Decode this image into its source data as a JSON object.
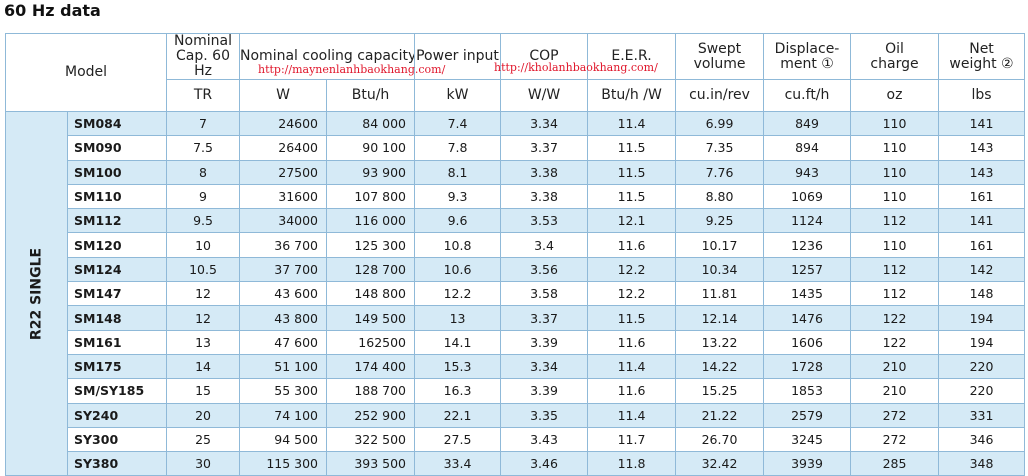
{
  "title": "60 Hz data",
  "watermarks": [
    "http://maynenlanhbaokhang.com/",
    "http://kholanhbaokhang.com/"
  ],
  "group_label": "R22 SINGLE",
  "headers": {
    "model": "Model",
    "cols": [
      {
        "top": "Nominal\nCap. 60 Hz",
        "unit": "TR"
      },
      {
        "top": "Nominal cooling capacity",
        "unit": "W"
      },
      {
        "top": "",
        "unit": "Btu/h"
      },
      {
        "top": "Power input",
        "unit": "kW"
      },
      {
        "top": "COP",
        "unit": "W/W"
      },
      {
        "top": "E.E.R.",
        "unit": "Btu/h /W"
      },
      {
        "top": "Swept\nvolume",
        "unit": "cu.in/rev"
      },
      {
        "top": "Displace-\nment ①",
        "unit": "cu.ft/h"
      },
      {
        "top": "Oil\ncharge",
        "unit": "oz"
      },
      {
        "top": "Net\nweight ②",
        "unit": "lbs"
      }
    ]
  },
  "rows": [
    {
      "model": "SM084",
      "tr": "7",
      "w": "24600",
      "btu": "84 000",
      "kw": "7.4",
      "cop": "3.34",
      "eer": "11.4",
      "swept": "6.99",
      "disp": "849",
      "oil": "110",
      "weight": "141"
    },
    {
      "model": "SM090",
      "tr": "7.5",
      "w": "26400",
      "btu": "90 100",
      "kw": "7.8",
      "cop": "3.37",
      "eer": "11.5",
      "swept": "7.35",
      "disp": "894",
      "oil": "110",
      "weight": "143"
    },
    {
      "model": "SM100",
      "tr": "8",
      "w": "27500",
      "btu": "93 900",
      "kw": "8.1",
      "cop": "3.38",
      "eer": "11.5",
      "swept": "7.76",
      "disp": "943",
      "oil": "110",
      "weight": "143"
    },
    {
      "model": "SM110",
      "tr": "9",
      "w": "31600",
      "btu": "107 800",
      "kw": "9.3",
      "cop": "3.38",
      "eer": "11.5",
      "swept": "8.80",
      "disp": "1069",
      "oil": "110",
      "weight": "161"
    },
    {
      "model": "SM112",
      "tr": "9.5",
      "w": "34000",
      "btu": "116 000",
      "kw": "9.6",
      "cop": "3.53",
      "eer": "12.1",
      "swept": "9.25",
      "disp": "1124",
      "oil": "112",
      "weight": "141"
    },
    {
      "model": "SM120",
      "tr": "10",
      "w": "36 700",
      "btu": "125 300",
      "kw": "10.8",
      "cop": "3.4",
      "eer": "11.6",
      "swept": "10.17",
      "disp": "1236",
      "oil": "110",
      "weight": "161"
    },
    {
      "model": "SM124",
      "tr": "10.5",
      "w": "37 700",
      "btu": "128 700",
      "kw": "10.6",
      "cop": "3.56",
      "eer": "12.2",
      "swept": "10.34",
      "disp": "1257",
      "oil": "112",
      "weight": "142"
    },
    {
      "model": "SM147",
      "tr": "12",
      "w": "43 600",
      "btu": "148 800",
      "kw": "12.2",
      "cop": "3.58",
      "eer": "12.2",
      "swept": "11.81",
      "disp": "1435",
      "oil": "112",
      "weight": "148"
    },
    {
      "model": "SM148",
      "tr": "12",
      "w": "43 800",
      "btu": "149 500",
      "kw": "13",
      "cop": "3.37",
      "eer": "11.5",
      "swept": "12.14",
      "disp": "1476",
      "oil": "122",
      "weight": "194"
    },
    {
      "model": "SM161",
      "tr": "13",
      "w": "47 600",
      "btu": "162500",
      "kw": "14.1",
      "cop": "3.39",
      "eer": "11.6",
      "swept": "13.22",
      "disp": "1606",
      "oil": "122",
      "weight": "194"
    },
    {
      "model": "SM175",
      "tr": "14",
      "w": "51 100",
      "btu": "174 400",
      "kw": "15.3",
      "cop": "3.34",
      "eer": "11.4",
      "swept": "14.22",
      "disp": "1728",
      "oil": "210",
      "weight": "220"
    },
    {
      "model": "SM/SY185",
      "tr": "15",
      "w": "55 300",
      "btu": "188 700",
      "kw": "16.3",
      "cop": "3.39",
      "eer": "11.6",
      "swept": "15.25",
      "disp": "1853",
      "oil": "210",
      "weight": "220"
    },
    {
      "model": "SY240",
      "tr": "20",
      "w": "74 100",
      "btu": "252 900",
      "kw": "22.1",
      "cop": "3.35",
      "eer": "11.4",
      "swept": "21.22",
      "disp": "2579",
      "oil": "272",
      "weight": "331"
    },
    {
      "model": "SY300",
      "tr": "25",
      "w": "94 500",
      "btu": "322 500",
      "kw": "27.5",
      "cop": "3.43",
      "eer": "11.7",
      "swept": "26.70",
      "disp": "3245",
      "oil": "272",
      "weight": "346"
    },
    {
      "model": "SY380",
      "tr": "30",
      "w": "115 300",
      "btu": "393 500",
      "kw": "33.4",
      "cop": "3.46",
      "eer": "11.8",
      "swept": "32.42",
      "disp": "3939",
      "oil": "285",
      "weight": "348"
    }
  ]
}
